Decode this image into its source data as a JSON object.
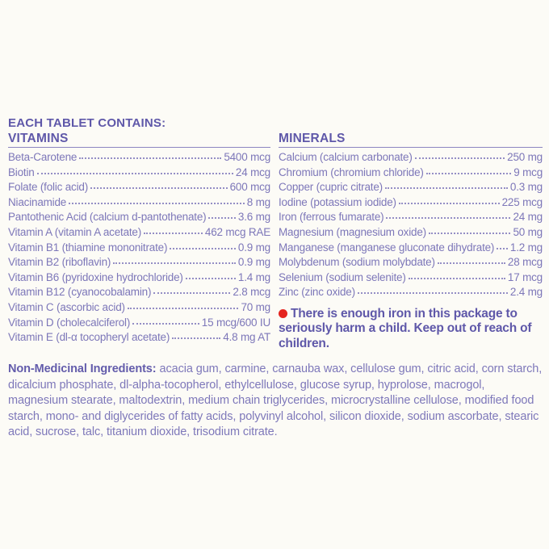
{
  "page": {
    "colors": {
      "bg": "#fcfbf6",
      "heading": "#5f58a9",
      "body": "#7d77b9",
      "rule": "#8c86c0",
      "dots": "#948ec5",
      "red": "#e4251f",
      "ing": "#7e78ba",
      "ing-label": "#635cab"
    }
  },
  "header": {
    "title": "EACH TABLET CONTAINS:"
  },
  "vitamins": {
    "heading": "VITAMINS",
    "rows": [
      {
        "name": "Beta-Carotene",
        "value": "5400 mcg"
      },
      {
        "name": "Biotin",
        "value": "24 mcg"
      },
      {
        "name": "Folate (folic acid)",
        "value": "600 mcg"
      },
      {
        "name": "Niacinamide",
        "value": "8 mg"
      },
      {
        "name": "Pantothenic Acid (calcium d-pantothenate)",
        "value": "3.6 mg"
      },
      {
        "name": "Vitamin A (vitamin A acetate)",
        "value": "462 mcg RAE"
      },
      {
        "name": "Vitamin B1 (thiamine mononitrate)",
        "value": "0.9 mg"
      },
      {
        "name": "Vitamin B2 (riboflavin)",
        "value": "0.9 mg"
      },
      {
        "name": "Vitamin B6 (pyridoxine hydrochloride)",
        "value": "1.4 mg"
      },
      {
        "name": "Vitamin B12 (cyanocobalamin)",
        "value": "2.8 mcg"
      },
      {
        "name": "Vitamin C (ascorbic acid)",
        "value": "70 mg"
      },
      {
        "name": "Vitamin D (cholecalciferol)",
        "value": "15 mcg/600 IU"
      },
      {
        "name": "Vitamin E (dl-α tocopheryl acetate)",
        "value": "4.8 mg AT"
      }
    ]
  },
  "minerals": {
    "heading": "MINERALS",
    "rows": [
      {
        "name": "Calcium (calcium carbonate)",
        "value": "250 mg"
      },
      {
        "name": "Chromium (chromium chloride)",
        "value": "9 mcg"
      },
      {
        "name": "Copper (cupric citrate)",
        "value": "0.3 mg"
      },
      {
        "name": "Iodine (potassium iodide)",
        "value": "225 mcg"
      },
      {
        "name": "Iron (ferrous fumarate)",
        "value": "24 mg"
      },
      {
        "name": "Magnesium (magnesium oxide)",
        "value": "50 mg"
      },
      {
        "name": "Manganese (manganese gluconate dihydrate)",
        "value": "1.2 mg"
      },
      {
        "name": "Molybdenum (sodium molybdate)",
        "value": "28 mcg"
      },
      {
        "name": "Selenium (sodium selenite)",
        "value": "17 mcg"
      },
      {
        "name": "Zinc (zinc oxide)",
        "value": "2.4 mg"
      }
    ]
  },
  "warning": {
    "bullet": "red-dot",
    "text": "There is enough iron in this package to seriously harm a child. Keep out of reach of children."
  },
  "ingredients": {
    "label": "Non-Medicinal Ingredients:",
    "text": "acacia gum, carmine, carnauba wax, cellulose gum, citric acid, corn starch, dicalcium phosphate, dl-alpha-tocopherol, ethylcellulose, glucose syrup, hyprolose, macrogol, magnesium stearate, maltodextrin, medium chain triglycerides, microcrystalline cellulose, modified food starch, mono- and diglycerides of fatty acids, polyvinyl alcohol, silicon dioxide, sodium ascorbate, stearic acid, sucrose, talc, titanium dioxide, trisodium citrate."
  }
}
